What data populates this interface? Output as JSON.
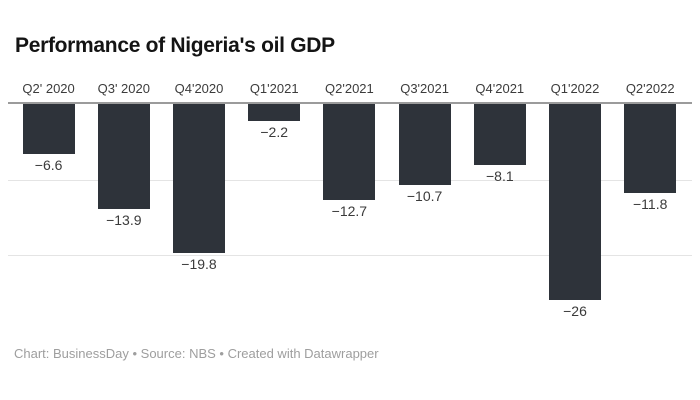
{
  "page": {
    "background_color": "#ffffff"
  },
  "header": {
    "title": "Performance of Nigeria's oil GDP",
    "title_color": "#141414"
  },
  "chart_data": {
    "type": "bar",
    "orientation": "vertical",
    "title": "Performance of Nigeria's oil GDP",
    "categories": [
      "Q2' 2020",
      "Q3' 2020",
      "Q4'2020",
      "Q1'2021",
      "Q2'2021",
      "Q3'2021",
      "Q4'2021",
      "Q1'2022",
      "Q2'2022"
    ],
    "values": [
      -6.6,
      -13.9,
      -19.8,
      -2.2,
      -12.7,
      -10.7,
      -8.1,
      -26,
      -11.8
    ],
    "value_labels": [
      "−6.6",
      "−13.9",
      "−19.8",
      "−2.2",
      "−12.7",
      "−10.7",
      "−8.1",
      "−26",
      "−11.8"
    ],
    "xlabel": "",
    "ylabel": "",
    "ylim": [
      -30,
      0
    ],
    "baseline": 0,
    "gridlines_at": [
      -10,
      -20
    ],
    "grid": "horizontal",
    "legend": "none",
    "axis_labels_position": "top",
    "bar_color": "#2e333a",
    "zero_line_color": "#9b9b9b",
    "gridline_color": "#e4e4e4",
    "category_label_color": "#3c3c3c",
    "value_label_color": "#3a3a3a"
  },
  "footer": {
    "attribution": "Chart: BusinessDay • Source: NBS • Created with Datawrapper",
    "color": "#9e9e9e"
  }
}
